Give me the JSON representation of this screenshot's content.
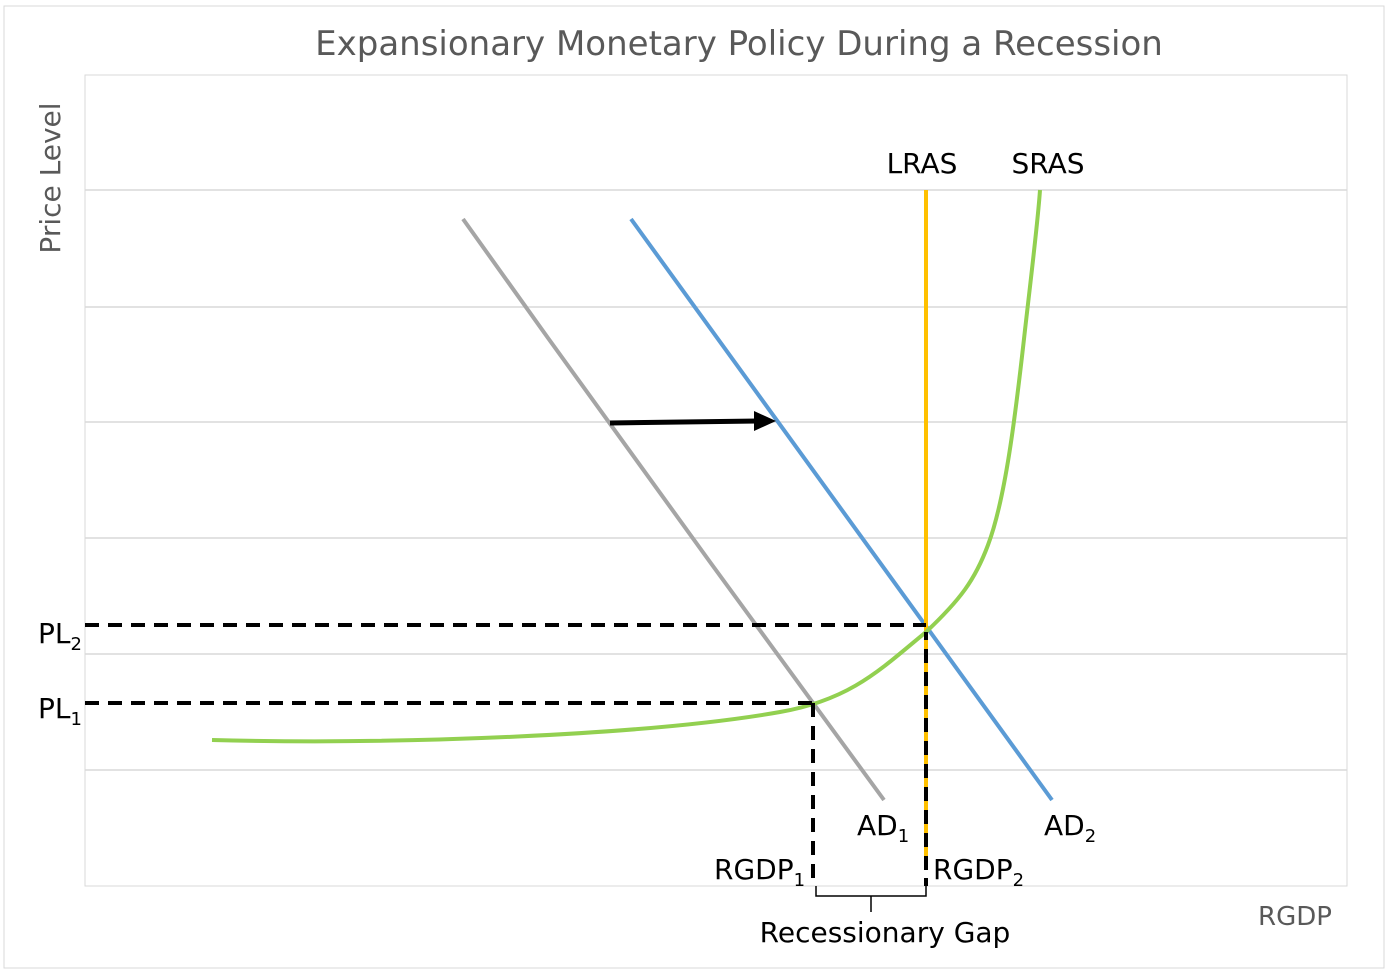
{
  "title": "Expansionary Monetary Policy During a Recession",
  "y_axis_label": "Price Level",
  "x_axis_label": "RGDP",
  "curves": {
    "lras": {
      "label": "LRAS",
      "color": "#FFC000"
    },
    "sras": {
      "label": "SRAS",
      "color": "#92D050"
    },
    "ad1": {
      "label": "AD",
      "sub": "1",
      "color": "#A5A5A5"
    },
    "ad2": {
      "label": "AD",
      "sub": "2",
      "color": "#5B9BD5"
    }
  },
  "markers": {
    "pl1": {
      "label": "PL",
      "sub": "1"
    },
    "pl2": {
      "label": "PL",
      "sub": "2"
    },
    "rgdp1": {
      "label": "RGDP",
      "sub": "1"
    },
    "rgdp2": {
      "label": "RGDP",
      "sub": "2"
    }
  },
  "gap_label": "Recessionary Gap",
  "colors": {
    "grid": "#D9D9D9",
    "title": "#595959",
    "text": "#000000"
  }
}
